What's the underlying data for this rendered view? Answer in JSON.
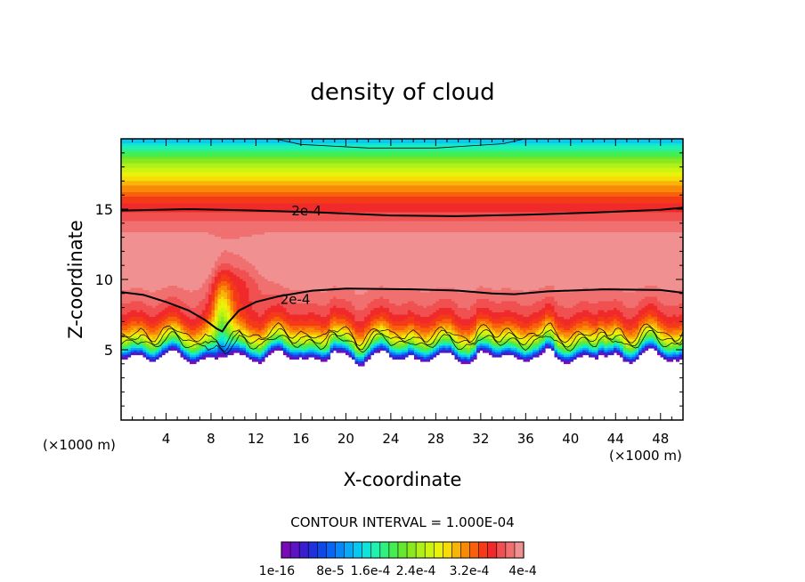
{
  "chart_data": {
    "type": "heatmap",
    "title": "density of cloud",
    "xlabel": "X-coordinate",
    "ylabel": "Z-coordinate",
    "x_unit": "(×1000 m)",
    "z_unit": "(×1000 m)",
    "xlim": [
      0,
      50
    ],
    "ylim": [
      0,
      20
    ],
    "x_ticks": [
      4,
      8,
      12,
      16,
      20,
      24,
      28,
      32,
      36,
      40,
      44,
      48
    ],
    "y_ticks": [
      5,
      10,
      15
    ],
    "x_tick_labels": [
      "4",
      "8",
      "12",
      "16",
      "20",
      "24",
      "28",
      "32",
      "36",
      "40",
      "44",
      "48"
    ],
    "y_tick_labels": [
      "5",
      "10",
      "15"
    ],
    "contour_interval_text": "CONTOUR INTERVAL = 1.000E-04",
    "contour_labels": [
      {
        "text": "2e-4",
        "x": 16.5,
        "z": 14.8
      },
      {
        "text": "2e-4",
        "x": 15.5,
        "z": 8.5
      }
    ],
    "colorbar": {
      "colors": [
        "#7a0ab8",
        "#5c14c4",
        "#3a1ed0",
        "#2030dc",
        "#1048e8",
        "#0a66f2",
        "#0888f8",
        "#08aaf8",
        "#06c8f0",
        "#10e4d6",
        "#20f0b0",
        "#30f080",
        "#44ee50",
        "#66e830",
        "#8ae820",
        "#aef018",
        "#ccf410",
        "#e8f20a",
        "#f8dc08",
        "#f8b408",
        "#f88a08",
        "#f8600c",
        "#f43a16",
        "#f02a2a",
        "#f05050",
        "#f07070",
        "#f09090"
      ],
      "labels": [
        "1e-16",
        "8e-5",
        "1.6e-4",
        "2.4e-4",
        "3.2e-4",
        "4e-4"
      ]
    }
  }
}
